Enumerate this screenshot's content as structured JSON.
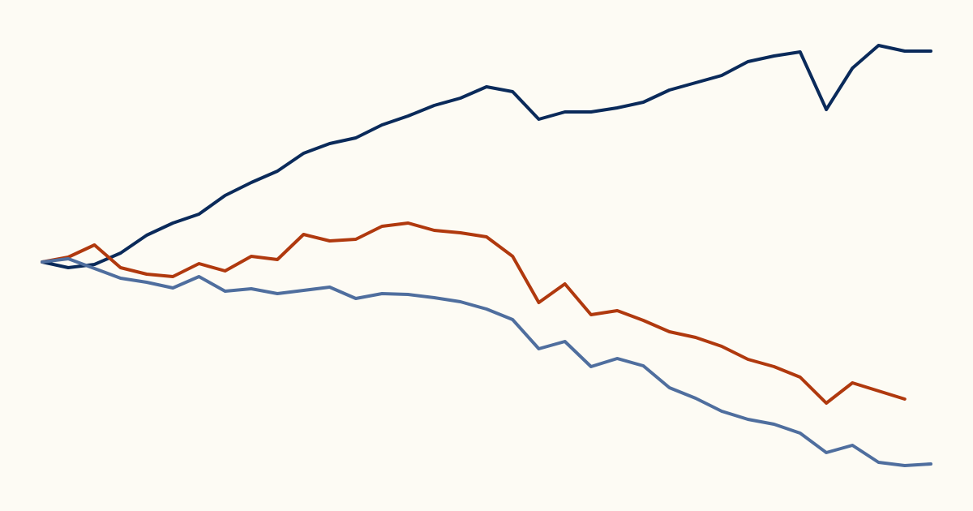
{
  "chart_data": {
    "type": "line",
    "categories": [
      null,
      null,
      null,
      null,
      null,
      null,
      null,
      null,
      null,
      null,
      null,
      null,
      null,
      null,
      null,
      null,
      null,
      null,
      null,
      null,
      null,
      null,
      null,
      null,
      null,
      null,
      null,
      null,
      null,
      null,
      null,
      null,
      null,
      null,
      null
    ],
    "series": [
      {
        "color": "#0a2a5a",
        "values": [
          0,
          -7,
          -3,
          11,
          33,
          48,
          59,
          82,
          98,
          112,
          134,
          146,
          153,
          169,
          180,
          193,
          202,
          216,
          210,
          176,
          185,
          185,
          190,
          197,
          212,
          221,
          230,
          247,
          254,
          259,
          188,
          239,
          267,
          260,
          260
        ]
      },
      {
        "color": "#b0390e",
        "values": [
          0,
          6,
          21,
          -7,
          -15,
          -18,
          -2,
          -11,
          7,
          3,
          34,
          26,
          28,
          44,
          48,
          39,
          36,
          31,
          7,
          -50,
          -27,
          -65,
          -60,
          -72,
          -86,
          -93,
          -104,
          -120,
          -129,
          -142,
          -174,
          -149,
          -159,
          -169,
          null
        ]
      },
      {
        "color": "#4f6e9e",
        "values": [
          0,
          4,
          -8,
          -20,
          -25,
          -32,
          -18,
          -36,
          -33,
          -39,
          -35,
          -31,
          -45,
          -39,
          -40,
          -44,
          -49,
          -58,
          -71,
          -107,
          -98,
          -129,
          -119,
          -128,
          -155,
          -168,
          -184,
          -194,
          -200,
          -211,
          -235,
          -226,
          -247,
          -251,
          -249
        ]
      }
    ]
  }
}
